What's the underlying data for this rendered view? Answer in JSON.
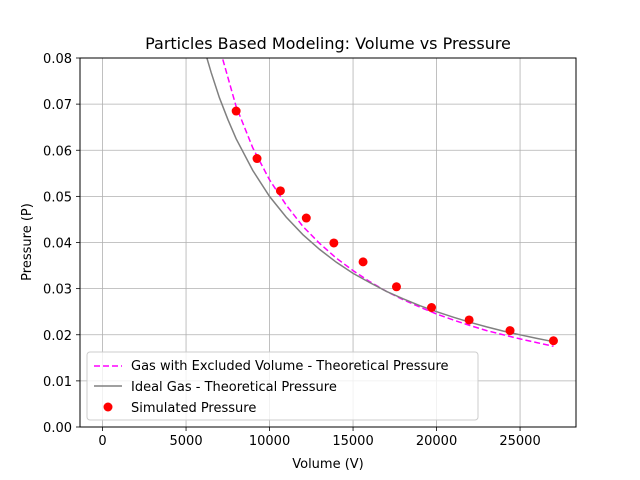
{
  "chart_data": {
    "type": "scatter",
    "title": "Particles Based Modeling: Volume vs Pressure",
    "xlabel": "Volume (V)",
    "ylabel": "Pressure (P)",
    "xlim": [
      -1350,
      28350
    ],
    "ylim": [
      0.0,
      0.08
    ],
    "xticks": [
      0,
      5000,
      10000,
      15000,
      20000,
      25000
    ],
    "xtick_labels": [
      "0",
      "5000",
      "10000",
      "15000",
      "20000",
      "25000"
    ],
    "yticks": [
      0.0,
      0.01,
      0.02,
      0.03,
      0.04,
      0.05,
      0.06,
      0.07,
      0.08
    ],
    "ytick_labels": [
      "0.00",
      "0.01",
      "0.02",
      "0.03",
      "0.04",
      "0.05",
      "0.06",
      "0.07",
      "0.08"
    ],
    "grid": true,
    "legend_position": "lower-left",
    "series": [
      {
        "name": "Gas with Excluded Volume - Theoretical Pressure",
        "kind": "line",
        "style": "dashed",
        "color": "#ff00ff",
        "x": [
          7200,
          8000,
          9000,
          10000,
          11000,
          12000,
          13000,
          14000,
          15000,
          16000,
          17000,
          18000,
          19000,
          20000,
          21000,
          22000,
          23000,
          24000,
          25000,
          26000,
          27000
        ],
        "y": [
          0.0797,
          0.0695,
          0.0605,
          0.0536,
          0.0481,
          0.0435,
          0.0398,
          0.0366,
          0.0339,
          0.0315,
          0.0294,
          0.0276,
          0.026,
          0.0245,
          0.0232,
          0.022,
          0.0209,
          0.02,
          0.0191,
          0.0183,
          0.0175
        ]
      },
      {
        "name": "Ideal Gas - Theoretical Pressure",
        "kind": "line",
        "style": "solid",
        "color": "#808080",
        "x": [
          6250,
          6500,
          7000,
          7500,
          8000,
          9000,
          10000,
          11000,
          12000,
          13000,
          14000,
          15000,
          16000,
          17000,
          18000,
          19000,
          20000,
          21000,
          22000,
          23000,
          24000,
          25000,
          26000,
          27000
        ],
        "y": [
          0.08,
          0.0769,
          0.0714,
          0.0667,
          0.0625,
          0.0556,
          0.05,
          0.0455,
          0.0417,
          0.0385,
          0.0357,
          0.0333,
          0.0313,
          0.0294,
          0.0278,
          0.0263,
          0.025,
          0.0238,
          0.0227,
          0.0217,
          0.0208,
          0.02,
          0.0192,
          0.0185
        ]
      },
      {
        "name": "Simulated Pressure",
        "kind": "scatter",
        "color": "#ff0000",
        "x": [
          8000,
          9250,
          10650,
          12200,
          13850,
          15600,
          17600,
          19700,
          21950,
          24400,
          27000
        ],
        "y": [
          0.0685,
          0.0582,
          0.0512,
          0.0453,
          0.0399,
          0.0358,
          0.0304,
          0.0259,
          0.0232,
          0.0209,
          0.0187
        ]
      }
    ]
  }
}
